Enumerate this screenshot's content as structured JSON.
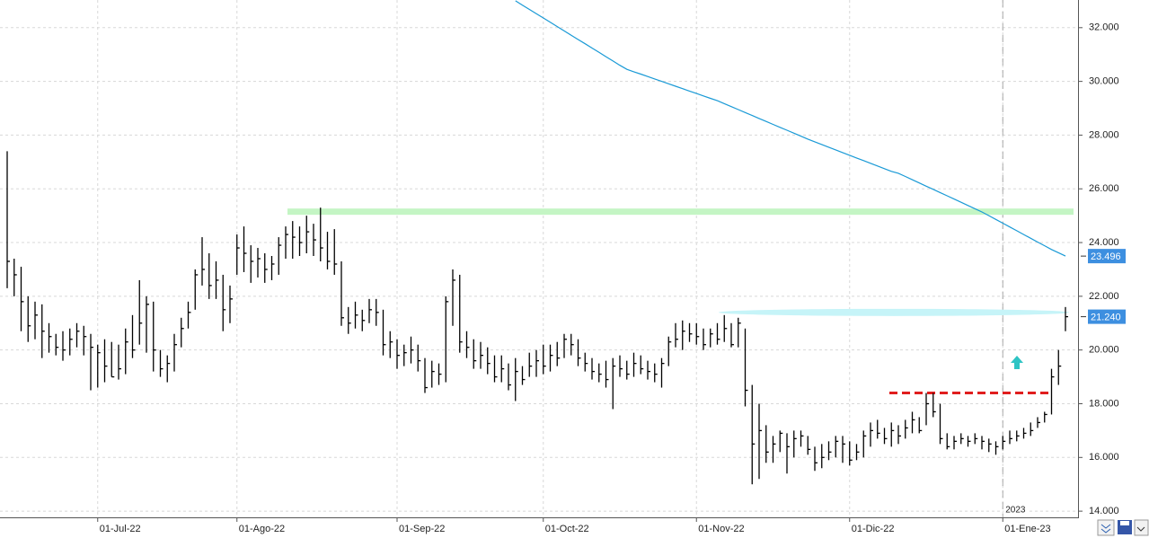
{
  "chart_data": {
    "type": "ohlc",
    "color": "#000000",
    "categories": [
      null,
      null,
      null,
      null,
      null,
      null,
      null,
      null,
      null,
      null,
      null,
      null,
      null,
      "01-Jul-22",
      null,
      null,
      null,
      null,
      null,
      null,
      null,
      null,
      null,
      null,
      null,
      null,
      null,
      null,
      null,
      null,
      null,
      null,
      null,
      "01-Ago-22",
      null,
      null,
      null,
      null,
      null,
      null,
      null,
      null,
      null,
      null,
      null,
      null,
      null,
      null,
      null,
      null,
      null,
      null,
      null,
      null,
      null,
      null,
      "01-Sep-22",
      null,
      null,
      null,
      null,
      null,
      null,
      null,
      null,
      null,
      null,
      null,
      null,
      null,
      null,
      null,
      null,
      null,
      null,
      null,
      null,
      "01-Oct-22",
      null,
      null,
      null,
      null,
      null,
      null,
      null,
      null,
      null,
      null,
      null,
      null,
      null,
      null,
      null,
      null,
      null,
      null,
      null,
      null,
      null,
      "01-Nov-22",
      null,
      null,
      null,
      null,
      null,
      null,
      null,
      null,
      null,
      null,
      null,
      null,
      null,
      null,
      null,
      null,
      null,
      null,
      null,
      null,
      null,
      "01-Dic-22",
      null,
      null,
      null,
      null,
      null,
      null,
      null,
      null,
      null,
      null,
      null,
      null,
      null,
      null,
      null,
      null,
      null,
      null,
      null,
      null,
      null,
      "01-Ene-23",
      null,
      null,
      null,
      null,
      null,
      null,
      null,
      null,
      null
    ],
    "high": [
      27400,
      23400,
      23100,
      22000,
      21800,
      21700,
      21000,
      20600,
      20700,
      20800,
      21000,
      20900,
      20600,
      20200,
      20400,
      20300,
      20200,
      20800,
      21300,
      22600,
      22000,
      21800,
      20000,
      19800,
      20600,
      21200,
      21800,
      23000,
      24200,
      23600,
      23300,
      22800,
      22400,
      24300,
      24600,
      23900,
      23800,
      23600,
      23500,
      24200,
      24600,
      24800,
      24600,
      25000,
      24700,
      25300,
      24400,
      24500,
      23300,
      21600,
      21800,
      21500,
      21900,
      21900,
      21500,
      20700,
      20400,
      20200,
      20500,
      20200,
      19700,
      19600,
      19500,
      22000,
      23000,
      22800,
      20700,
      20400,
      20300,
      20100,
      19800,
      19800,
      19500,
      19700,
      19400,
      19900,
      20000,
      20200,
      20200,
      20300,
      20600,
      20600,
      20400,
      19900,
      19700,
      19500,
      19600,
      19700,
      19800,
      19600,
      19900,
      19800,
      19600,
      19500,
      19700,
      20500,
      21000,
      21100,
      21000,
      21000,
      20800,
      20800,
      21000,
      21300,
      21000,
      21200,
      20800,
      18700,
      18000,
      17200,
      16800,
      17000,
      16900,
      17000,
      17000,
      16800,
      16400,
      16500,
      16600,
      16800,
      16800,
      16600,
      16500,
      17000,
      17300,
      17400,
      17100,
      17300,
      17200,
      17400,
      17700,
      17500,
      18400,
      18400,
      18000,
      16900,
      16800,
      16900,
      16800,
      16900,
      16800,
      16700,
      16600,
      16800,
      17000,
      17000,
      17100,
      17300,
      17500,
      17700,
      19300,
      20000,
      21600
    ],
    "low": [
      22300,
      22000,
      20700,
      20300,
      20400,
      19700,
      19900,
      19800,
      19600,
      19800,
      20100,
      19800,
      18500,
      18600,
      18800,
      19000,
      18900,
      19100,
      19700,
      20200,
      19900,
      19200,
      19000,
      18800,
      19200,
      20100,
      20800,
      21500,
      22400,
      21900,
      21900,
      20700,
      21000,
      22800,
      22900,
      22500,
      22700,
      22500,
      22600,
      22800,
      23400,
      23400,
      23500,
      23600,
      23500,
      23300,
      23000,
      22800,
      20900,
      20600,
      20800,
      20700,
      21000,
      20900,
      19800,
      19700,
      19300,
      19400,
      19500,
      19200,
      18400,
      18600,
      18700,
      18800,
      20900,
      19900,
      19700,
      19300,
      19300,
      19100,
      18800,
      18800,
      18500,
      18100,
      18700,
      19000,
      19000,
      19100,
      19200,
      19400,
      19700,
      19800,
      19400,
      19200,
      18900,
      18800,
      18600,
      17800,
      19000,
      18900,
      19000,
      19100,
      18900,
      18800,
      18600,
      19400,
      20100,
      20000,
      20300,
      20200,
      20000,
      20100,
      20200,
      20300,
      20100,
      20100,
      17900,
      15000,
      15200,
      15800,
      15800,
      16200,
      15400,
      16000,
      16400,
      16100,
      15500,
      15600,
      15900,
      16000,
      15800,
      15700,
      15900,
      16000,
      16400,
      16700,
      16500,
      16400,
      16500,
      16700,
      16900,
      16900,
      17200,
      17500,
      16500,
      16300,
      16300,
      16500,
      16400,
      16500,
      16300,
      16200,
      16100,
      16300,
      16500,
      16600,
      16700,
      16800,
      17100,
      17300,
      17600,
      18700,
      20700
    ],
    "close": [
      23300,
      22800,
      21800,
      20900,
      21300,
      20700,
      20500,
      20100,
      20000,
      20400,
      20700,
      20500,
      20100,
      19900,
      19400,
      19000,
      19300,
      20300,
      20000,
      21000,
      21700,
      20000,
      19300,
      19500,
      20200,
      20800,
      21400,
      22800,
      23000,
      22400,
      22600,
      21500,
      21900,
      23800,
      23600,
      23300,
      23400,
      23000,
      23200,
      23900,
      24300,
      24200,
      24000,
      24400,
      24100,
      23800,
      23300,
      23200,
      21200,
      21000,
      21300,
      21100,
      21500,
      21400,
      20200,
      20300,
      19800,
      19900,
      20000,
      19600,
      18600,
      19200,
      19100,
      21800,
      22600,
      20300,
      20100,
      19600,
      19800,
      19500,
      19000,
      19300,
      18700,
      19200,
      18900,
      19400,
      19600,
      19400,
      19800,
      19700,
      20400,
      20200,
      19700,
      19500,
      19200,
      19100,
      18900,
      19400,
      19300,
      19100,
      19500,
      19300,
      19200,
      19100,
      19500,
      20300,
      20400,
      20700,
      20600,
      20500,
      20200,
      20600,
      20400,
      20800,
      20200,
      21000,
      18500,
      16500,
      17000,
      16200,
      16500,
      16900,
      16400,
      16700,
      16800,
      16300,
      15800,
      16000,
      16200,
      16600,
      16500,
      15900,
      16200,
      16800,
      17000,
      16900,
      16700,
      17000,
      16800,
      17100,
      17400,
      17000,
      18000,
      17700,
      16700,
      16400,
      16600,
      16700,
      16600,
      16700,
      16600,
      16500,
      16400,
      16600,
      16700,
      16800,
      16900,
      17000,
      17300,
      17600,
      19000,
      19400,
      21240
    ],
    "moving_average": {
      "color": "#1a9ad6",
      "values": [
        null,
        null,
        null,
        null,
        null,
        null,
        null,
        null,
        null,
        null,
        null,
        null,
        null,
        null,
        null,
        null,
        null,
        null,
        null,
        null,
        null,
        null,
        null,
        null,
        null,
        null,
        null,
        null,
        null,
        null,
        null,
        null,
        null,
        null,
        null,
        null,
        null,
        null,
        null,
        null,
        null,
        null,
        null,
        null,
        null,
        null,
        null,
        null,
        null,
        null,
        null,
        null,
        null,
        null,
        null,
        null,
        null,
        null,
        null,
        null,
        null,
        null,
        null,
        null,
        null,
        null,
        null,
        null,
        null,
        null,
        null,
        null,
        null,
        33000,
        32840,
        32680,
        32520,
        32360,
        32200,
        32040,
        31880,
        31720,
        31560,
        31400,
        31240,
        31080,
        30920,
        30760,
        30600,
        30450,
        30360,
        30270,
        30180,
        30090,
        30000,
        29910,
        29820,
        29730,
        29640,
        29550,
        29460,
        29370,
        29280,
        29170,
        29060,
        28950,
        28840,
        28730,
        28620,
        28510,
        28400,
        28290,
        28180,
        28070,
        27960,
        27850,
        27750,
        27650,
        27550,
        27450,
        27350,
        27250,
        27150,
        27050,
        26950,
        26850,
        26750,
        26650,
        26580,
        26460,
        26340,
        26220,
        26100,
        25980,
        25860,
        25740,
        25620,
        25500,
        25380,
        25260,
        25140,
        25000,
        24860,
        24720,
        24580,
        24440,
        24300,
        24160,
        24020,
        23880,
        23740,
        23620,
        23496
      ]
    },
    "levels": [
      {
        "value": 25150,
        "color": "#c4f5c4",
        "style": "band"
      },
      {
        "value": 21400,
        "color": "#c6f4f8",
        "style": "band"
      },
      {
        "value": 18400,
        "color": "#e01e1e",
        "style": "dashed"
      }
    ],
    "price_tags": [
      {
        "value": 23496,
        "label": "23.496",
        "color": "#3d8fe0"
      },
      {
        "value": 21240,
        "label": "21.240",
        "color": "#3d8fe0"
      }
    ],
    "year_marker": "2023",
    "ylim": [
      13770,
      33030
    ],
    "yticks": [
      {
        "value": 14000,
        "label": "14.000"
      },
      {
        "value": 16000,
        "label": "16.000"
      },
      {
        "value": 18000,
        "label": "18.000"
      },
      {
        "value": 20000,
        "label": "20.000"
      },
      {
        "value": 22000,
        "label": "22.000"
      },
      {
        "value": 24000,
        "label": "24.000"
      },
      {
        "value": 26000,
        "label": "26.000"
      },
      {
        "value": 28000,
        "label": "28.000"
      },
      {
        "value": 30000,
        "label": "30.000"
      },
      {
        "value": 32000,
        "label": "32.000"
      }
    ],
    "grid": true
  }
}
